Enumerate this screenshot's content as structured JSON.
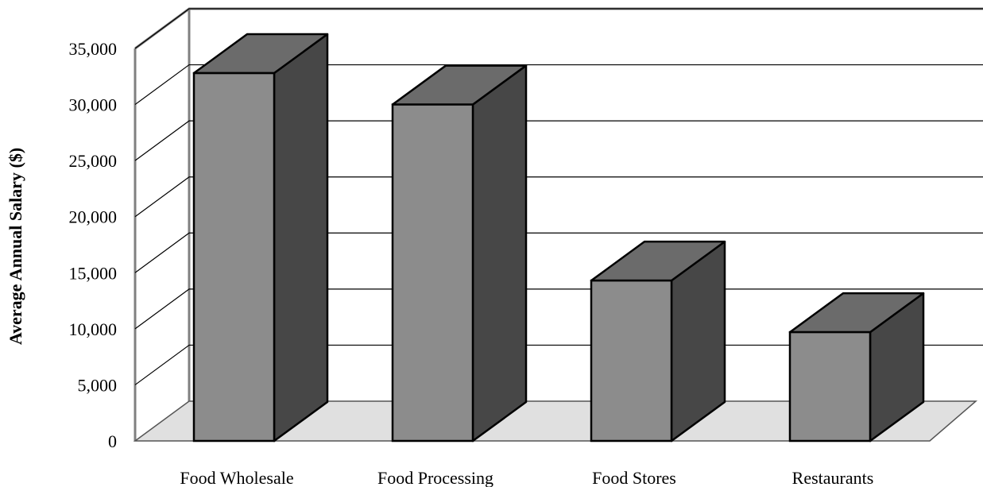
{
  "chart_data": {
    "type": "bar",
    "title": "",
    "xlabel": "",
    "ylabel": "Average Annual Salary ($)",
    "categories": [
      "Food Wholesale",
      "Food Processing",
      "Food Stores",
      "Restaurants"
    ],
    "values": [
      32800,
      30000,
      14300,
      9700
    ],
    "ylim": [
      0,
      35000
    ],
    "yticks": [
      "0",
      "5,000",
      "10,000",
      "15,000",
      "20,000",
      "25,000",
      "30,000",
      "35,000"
    ],
    "grid": true,
    "legend": "none",
    "three_d": true,
    "colors": {
      "bar_front": "#8c8c8c",
      "bar_side": "#474747",
      "bar_top": "#6b6b6b",
      "floor": "#e0e0e0",
      "grid": "#000000",
      "walls": "#808080"
    }
  }
}
